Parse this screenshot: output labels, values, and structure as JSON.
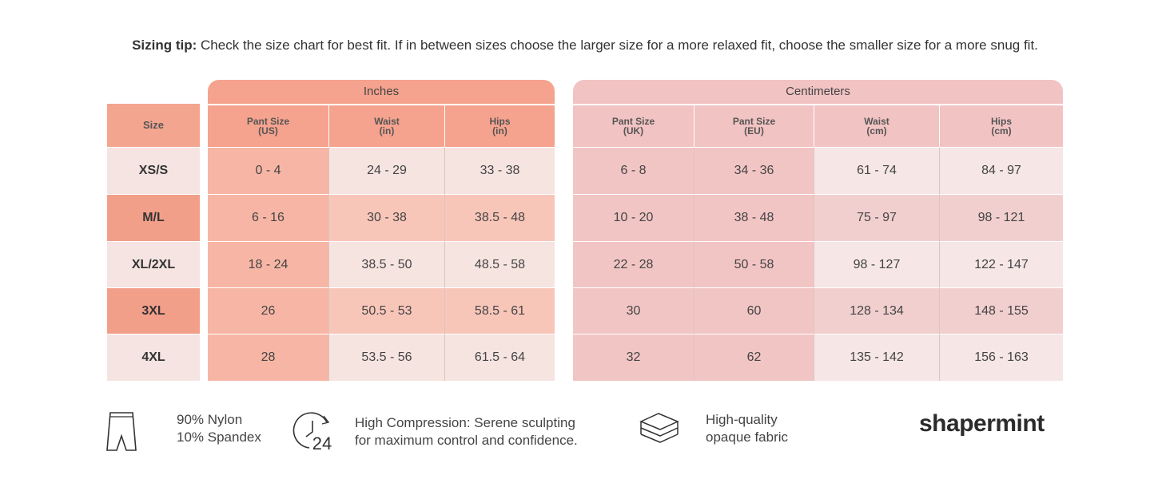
{
  "tip": {
    "label": "Sizing tip:",
    "text": "Check the size chart for best fit. If in between sizes choose the larger size for a more relaxed fit, choose the smaller size for a more snug fit."
  },
  "table": {
    "size_header": "Size",
    "groups": [
      {
        "title": "Inches",
        "columns": [
          {
            "name": "Pant Size",
            "unit": "(US)"
          },
          {
            "name": "Waist",
            "unit": "(in)"
          },
          {
            "name": "Hips",
            "unit": "(in)"
          }
        ]
      },
      {
        "title": "Centimeters",
        "columns": [
          {
            "name": "Pant Size",
            "unit": "(UK)"
          },
          {
            "name": "Pant Size",
            "unit": "(EU)"
          },
          {
            "name": "Waist",
            "unit": "(cm)"
          },
          {
            "name": "Hips",
            "unit": "(cm)"
          }
        ]
      }
    ],
    "rows": [
      {
        "size": "XS/S",
        "cells": [
          "0 - 4",
          "24 - 29",
          "33 - 38",
          "6 - 8",
          "34 - 36",
          "61 - 74",
          "84 - 97"
        ]
      },
      {
        "size": "M/L",
        "cells": [
          "6 - 16",
          "30 - 38",
          "38.5 - 48",
          "10 - 20",
          "38 - 48",
          "75 - 97",
          "98 - 121"
        ]
      },
      {
        "size": "XL/2XL",
        "cells": [
          "18 - 24",
          "38.5 - 50",
          "48.5 - 58",
          "22 - 28",
          "50 - 58",
          "98 - 127",
          "122 - 147"
        ]
      },
      {
        "size": "3XL",
        "cells": [
          "26",
          "50.5 - 53",
          "58.5 - 61",
          "30",
          "60",
          "128 - 134",
          "148 - 155"
        ]
      },
      {
        "size": "4XL",
        "cells": [
          "28",
          "53.5 - 56",
          "61.5 - 64",
          "32",
          "62",
          "135 - 142",
          "156 - 163"
        ]
      }
    ]
  },
  "features": [
    {
      "lines": [
        "90% Nylon",
        "10% Spandex"
      ]
    },
    {
      "icon_label": "24",
      "lines": [
        "High Compression: Serene sculpting",
        "for maximum control and confidence."
      ]
    },
    {
      "lines": [
        "High-quality",
        "opaque fabric"
      ]
    }
  ],
  "brand": "shapermint"
}
